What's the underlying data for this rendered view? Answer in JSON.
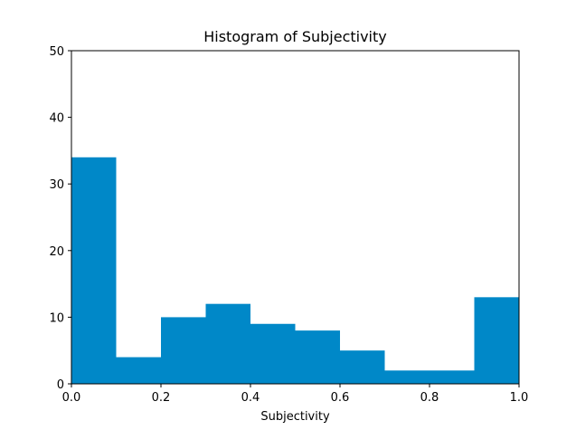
{
  "chart_data": {
    "type": "bar",
    "title": "Histogram of Subjectivity",
    "xlabel": "Subjectivity",
    "ylabel": "",
    "xlim": [
      0,
      1
    ],
    "ylim": [
      0,
      50
    ],
    "xticks": [
      "0.0",
      "0.2",
      "0.4",
      "0.6",
      "0.8",
      "1.0"
    ],
    "yticks": [
      "0",
      "10",
      "20",
      "30",
      "40",
      "50"
    ],
    "bin_edges": [
      0.0,
      0.1,
      0.2,
      0.3,
      0.4,
      0.5,
      0.6,
      0.7,
      0.8,
      0.9,
      1.0
    ],
    "values": [
      34,
      4,
      10,
      12,
      9,
      8,
      5,
      2,
      2,
      13
    ],
    "bar_color": "#0088c8",
    "grid": false,
    "legend": "none"
  }
}
